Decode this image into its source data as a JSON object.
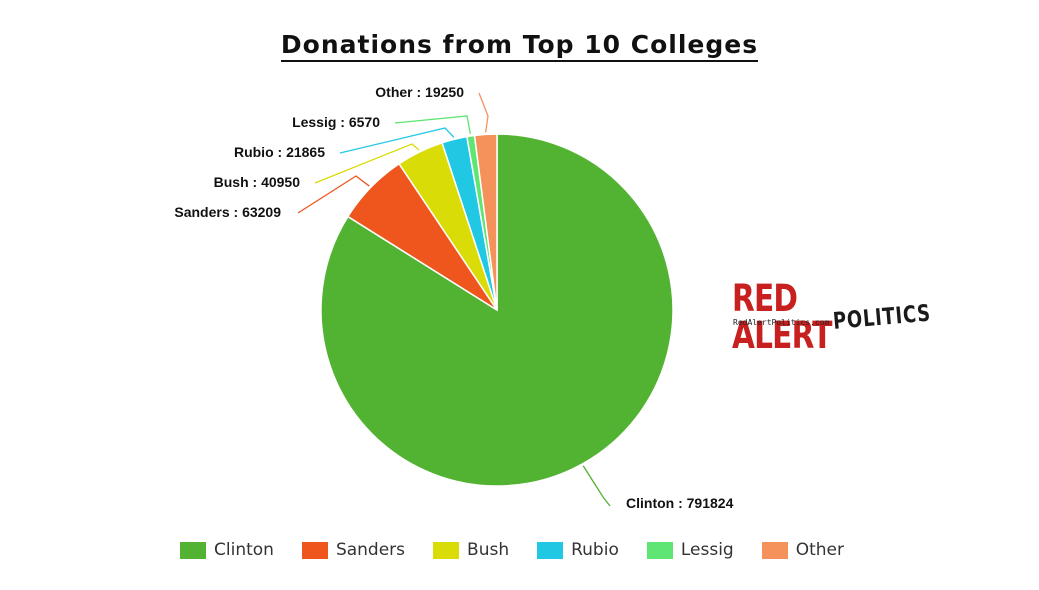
{
  "chart_data": {
    "type": "pie",
    "title": "Donations from Top 10 Colleges",
    "slices": [
      {
        "label": "Clinton",
        "value": 791824,
        "color": "#52b332",
        "display": "Clinton : 791824"
      },
      {
        "label": "Sanders",
        "value": 63209,
        "color": "#ee561e",
        "display": "Sanders : 63209"
      },
      {
        "label": "Bush",
        "value": 40950,
        "color": "#dadc08",
        "display": "Bush : 40950"
      },
      {
        "label": "Rubio",
        "value": 21865,
        "color": "#20c8e4",
        "display": "Rubio : 21865"
      },
      {
        "label": "Lessig",
        "value": 6570,
        "color": "#5ee574",
        "display": "Lessig : 6570"
      },
      {
        "label": "Other",
        "value": 19250,
        "color": "#f5925b",
        "display": "Other : 19250"
      }
    ],
    "legend_position": "bottom",
    "start_angle": "12 o'clock",
    "direction": "clockwise"
  },
  "logo": {
    "main": "RED ALERT",
    "sub": "POLITICS",
    "url": "RedAlertPolitics.com"
  }
}
